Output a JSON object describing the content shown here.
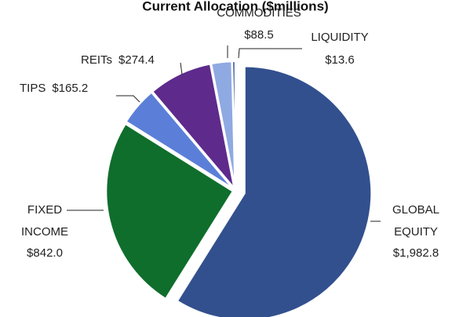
{
  "chart_data": {
    "type": "pie",
    "title": "Current Allocation ($millions)",
    "categories": [
      "GLOBAL EQUITY",
      "FIXED INCOME",
      "TIPS",
      "REITs",
      "COMMODITIES",
      "LIQUIDITY"
    ],
    "values": [
      1982.8,
      842.0,
      165.2,
      274.4,
      88.5,
      13.6
    ],
    "value_labels": [
      "$1,982.8",
      "$842.0",
      "$165.2",
      "$274.4",
      "$88.5",
      "$13.6"
    ],
    "colors": [
      "#32508e",
      "#0f6e2c",
      "#5b7fd8",
      "#5e2a8c",
      "#8fa9e2",
      "#2f4c9c"
    ]
  }
}
